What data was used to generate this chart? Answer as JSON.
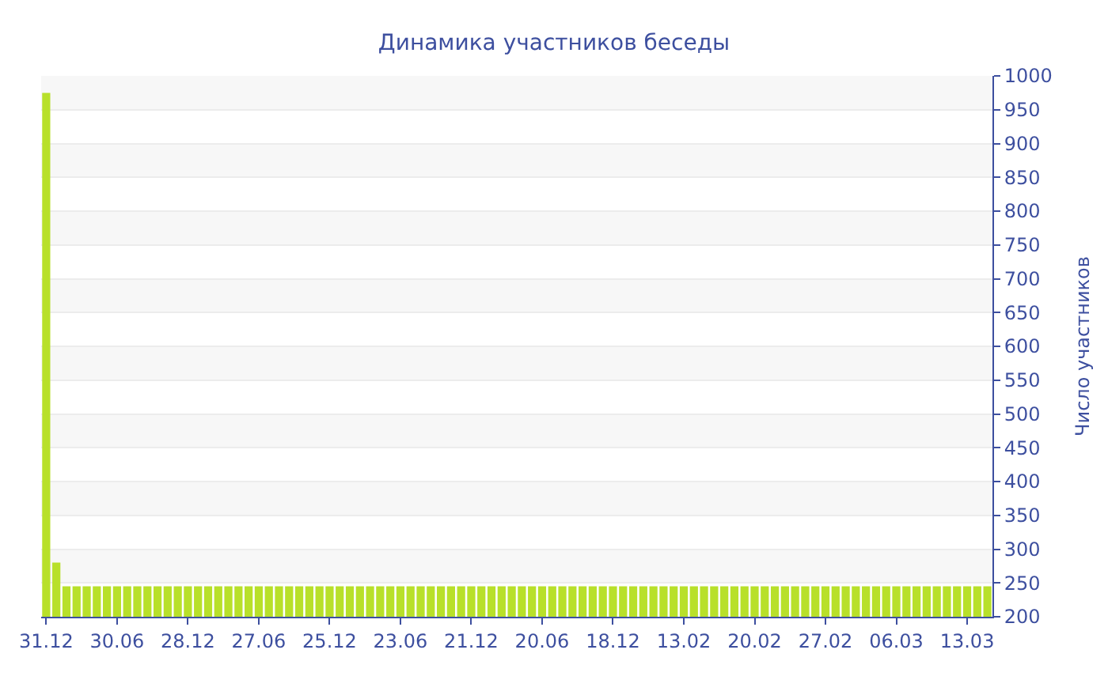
{
  "chart_data": {
    "type": "bar",
    "title": "Динамика участников беседы",
    "ylabel": "Число участников",
    "categories": [
      "31.12",
      null,
      null,
      null,
      null,
      null,
      null,
      "30.06",
      null,
      null,
      null,
      null,
      null,
      null,
      "28.12",
      null,
      null,
      null,
      null,
      null,
      null,
      "27.06",
      null,
      null,
      null,
      null,
      null,
      null,
      "25.12",
      null,
      null,
      null,
      null,
      null,
      null,
      "23.06",
      null,
      null,
      null,
      null,
      null,
      null,
      "21.12",
      null,
      null,
      null,
      null,
      null,
      null,
      "20.06",
      null,
      null,
      null,
      null,
      null,
      null,
      "18.12",
      null,
      null,
      null,
      null,
      null,
      null,
      "13.02",
      null,
      null,
      null,
      null,
      null,
      null,
      "20.02",
      null,
      null,
      null,
      null,
      null,
      null,
      "27.02",
      null,
      null,
      null,
      null,
      null,
      null,
      "06.03",
      null,
      null,
      null,
      null,
      null,
      null,
      "13.03",
      null,
      null
    ],
    "values": [
      975,
      280,
      245,
      245,
      245,
      245,
      245,
      245,
      245,
      245,
      245,
      245,
      245,
      245,
      245,
      245,
      245,
      245,
      245,
      245,
      245,
      245,
      245,
      245,
      245,
      245,
      245,
      245,
      245,
      245,
      245,
      245,
      245,
      245,
      245,
      245,
      245,
      245,
      245,
      245,
      245,
      245,
      245,
      245,
      245,
      245,
      245,
      245,
      245,
      245,
      245,
      245,
      245,
      245,
      245,
      245,
      245,
      245,
      245,
      245,
      245,
      245,
      245,
      245,
      245,
      245,
      245,
      245,
      245,
      245,
      245,
      245,
      245,
      245,
      245,
      245,
      245,
      245,
      245,
      245,
      245,
      245,
      245,
      245,
      245,
      245,
      245,
      245,
      245,
      245,
      245,
      245,
      245,
      245
    ],
    "color": "#b8e02a",
    "ylim": [
      200,
      1000
    ],
    "yticks": [
      200,
      250,
      300,
      350,
      400,
      450,
      500,
      550,
      600,
      650,
      700,
      750,
      800,
      850,
      900,
      950,
      1000
    ],
    "grid": "y",
    "legend": false
  }
}
